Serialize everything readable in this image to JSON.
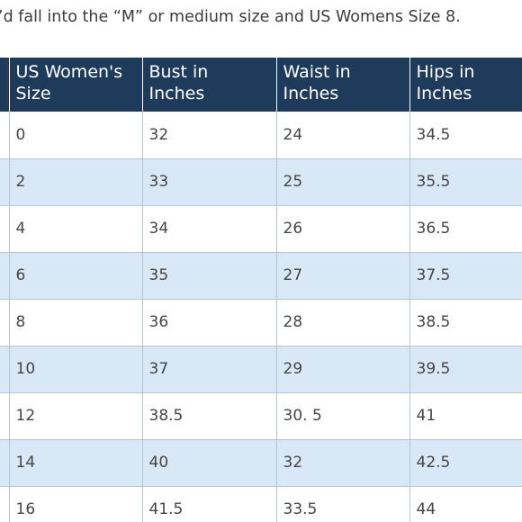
{
  "intro_text": "’d fall into the “M” or medium size and US Womens Size 8.",
  "table": {
    "headers": [
      {
        "line1": "US Women's",
        "line2": "Size"
      },
      {
        "line1": "Bust in",
        "line2": "Inches"
      },
      {
        "line1": "Waist in",
        "line2": "Inches"
      },
      {
        "line1": "Hips in",
        "line2": "Inches"
      }
    ],
    "rows": [
      [
        "0",
        "32",
        "24",
        "34.5"
      ],
      [
        "2",
        "33",
        "25",
        "35.5"
      ],
      [
        "4",
        "34",
        "26",
        "36.5"
      ],
      [
        "6",
        "35",
        "27",
        "37.5"
      ],
      [
        "8",
        "36",
        "28",
        "38.5"
      ],
      [
        "10",
        "37",
        "29",
        "39.5"
      ],
      [
        "12",
        "38.5",
        "30. 5",
        "41"
      ],
      [
        "14",
        "40",
        "32",
        "42.5"
      ],
      [
        "16",
        "41.5",
        "33.5",
        "44"
      ]
    ]
  },
  "colors": {
    "header_background": "#1f3b5c",
    "stripe_background": "#d8e8f6"
  }
}
